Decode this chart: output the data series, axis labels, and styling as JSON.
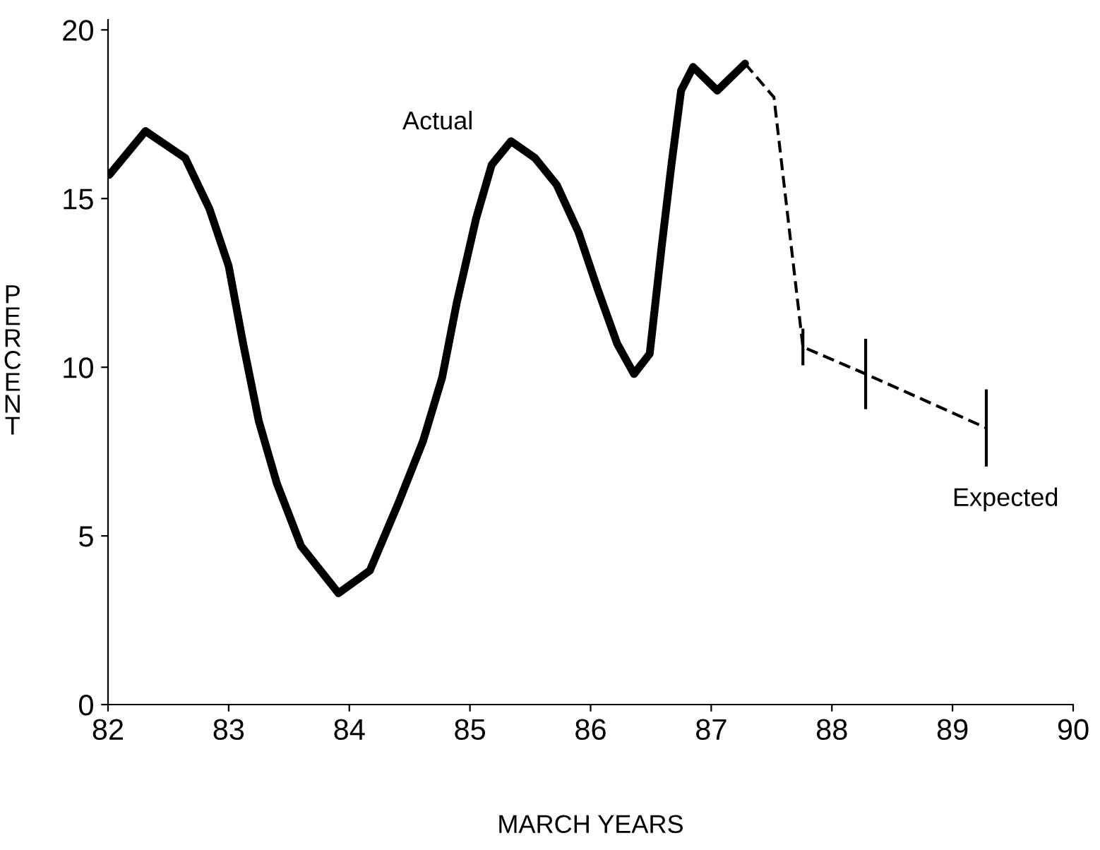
{
  "chart_data": {
    "type": "line",
    "xlabel": "MARCH YEARS",
    "ylabel": "PERCENT",
    "xlim": [
      82,
      90
    ],
    "xticks": [
      82,
      83,
      84,
      85,
      86,
      87,
      88,
      89,
      90
    ],
    "ylim": [
      0,
      20.3
    ],
    "yticks": [
      0,
      5,
      10,
      15,
      20
    ],
    "grid": false,
    "legend": false,
    "marker": "none",
    "series": [
      {
        "name": "Actual",
        "color": "#000000",
        "line_style": "solid",
        "x": [
          82.01,
          82.31,
          82.64,
          82.84,
          83.0,
          83.12,
          83.25,
          83.4,
          83.6,
          83.91,
          84.17,
          84.41,
          84.61,
          84.77,
          84.89,
          85.05,
          85.18,
          85.34,
          85.54,
          85.72,
          85.9,
          86.06,
          86.22,
          86.36,
          86.49,
          86.59,
          86.67,
          86.75,
          86.85,
          87.05,
          87.28
        ],
        "values": [
          15.7,
          17.0,
          16.2,
          14.7,
          13.0,
          10.7,
          8.4,
          6.55,
          4.7,
          3.3,
          3.97,
          6.0,
          7.8,
          9.7,
          11.9,
          14.4,
          16.0,
          16.7,
          16.2,
          15.4,
          14.0,
          12.3,
          10.7,
          9.8,
          10.4,
          13.6,
          16.0,
          18.2,
          18.9,
          18.2,
          19.0
        ]
      },
      {
        "name": "Expected",
        "color": "#000000",
        "line_style": "dashed",
        "x": [
          87.28,
          87.52,
          87.76,
          88.28,
          89.28
        ],
        "values": [
          19.0,
          18.0,
          10.6,
          9.8,
          8.2
        ],
        "errors": [
          null,
          null,
          0.5,
          1.0,
          1.1
        ]
      }
    ]
  }
}
